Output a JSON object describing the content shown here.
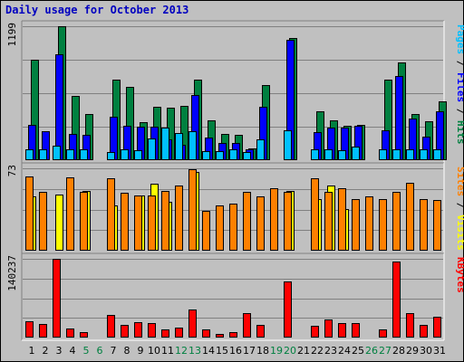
{
  "chart_data": {
    "type": "bar",
    "title": "Daily usage for October 2013",
    "days": [
      "1",
      "2",
      "3",
      "4",
      "5",
      "6",
      "7",
      "8",
      "9",
      "10",
      "11",
      "12",
      "13",
      "14",
      "15",
      "16",
      "17",
      "18",
      "19",
      "20",
      "21",
      "22",
      "23",
      "24",
      "25",
      "26",
      "27",
      "28",
      "29",
      "30",
      "31"
    ],
    "weekend_days": [
      "5",
      "6",
      "12",
      "13",
      "19",
      "20",
      "26",
      "27"
    ],
    "panels": [
      {
        "name": "hits",
        "ymax_label": "1199",
        "ymax": 1199,
        "series": [
          {
            "name": "Hits",
            "color": "#008040",
            "values": [
              900,
              0,
              1199,
              575,
              410,
              0,
              720,
              660,
              340,
              480,
              470,
              490,
              725,
              355,
              235,
              225,
              105,
              670,
              0,
              1095,
              0,
              440,
              360,
              305,
              315,
              0,
              720,
              875,
              410,
              350,
              525
            ]
          },
          {
            "name": "Files",
            "color": "#0000ff",
            "values": [
              320,
              258,
              950,
              235,
              230,
              0,
              390,
              310,
              300,
              300,
              190,
              135,
              585,
              205,
              155,
              150,
              95,
              475,
              0,
              1080,
              0,
              255,
              290,
              290,
              310,
              0,
              265,
              750,
              370,
              210,
              440
            ]
          },
          {
            "name": "Pages",
            "color": "#00c0ff",
            "values": [
              95,
              95,
              130,
              95,
              95,
              0,
              70,
              95,
              90,
              195,
              290,
              245,
              260,
              80,
              80,
              95,
              70,
              185,
              0,
              270,
              0,
              95,
              95,
              90,
              120,
              0,
              95,
              95,
              95,
              95,
              95
            ]
          }
        ],
        "legend": [
          {
            "text": "Pages",
            "color": "#00c0ff"
          },
          {
            "text": " / ",
            "color": "#000000"
          },
          {
            "text": "Files",
            "color": "#0000ff"
          },
          {
            "text": " / ",
            "color": "#000000"
          },
          {
            "text": "Hits",
            "color": "#008040"
          }
        ]
      },
      {
        "name": "visits",
        "ymax_label": "73",
        "ymax": 73,
        "series": [
          {
            "name": "Visits",
            "color": "#ffff00",
            "values": [
              48,
              0,
              50,
              0,
              53,
              0,
              40,
              0,
              49,
              59,
              43,
              0,
              70,
              0,
              0,
              0,
              0,
              0,
              0,
              53,
              0,
              46,
              58,
              37,
              0,
              0,
              0,
              0,
              0,
              0,
              0
            ]
          },
          {
            "name": "Sites",
            "color": "#ff8000",
            "values": [
              66,
              52,
              0,
              65,
              52,
              0,
              64,
              51,
              49,
              49,
              53,
              58,
              72,
              35,
              40,
              42,
              52,
              48,
              55,
              52,
              0,
              64,
              52,
              55,
              46,
              48,
              46,
              52,
              60,
              46,
              45
            ]
          }
        ],
        "legend": [
          {
            "text": "Sites",
            "color": "#ff8000"
          },
          {
            "text": " / ",
            "color": "#000000"
          },
          {
            "text": "Visits",
            "color": "#ffff00"
          }
        ]
      },
      {
        "name": "kbytes",
        "ymax_label": "140237",
        "ymax": 140237,
        "series": [
          {
            "name": "KBytes",
            "color": "#ff0000",
            "values": [
              29000,
              24000,
              140237,
              16000,
              10000,
              0,
              41000,
              22000,
              27000,
              26000,
              15000,
              17000,
              50000,
              14000,
              6000,
              9000,
              44000,
              23000,
              0,
              99500,
              0,
              21000,
              33000,
              26000,
              25000,
              0,
              15000,
              135000,
              43000,
              22000,
              37000
            ]
          }
        ],
        "legend": [
          {
            "text": "KBytes",
            "color": "#ff0000"
          }
        ]
      }
    ]
  }
}
